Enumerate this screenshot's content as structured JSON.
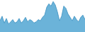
{
  "chart_data": {
    "type": "area",
    "series": [
      {
        "type": "area",
        "color": "#6bb3d9",
        "values": [
          20,
          28,
          16,
          24,
          14,
          18,
          22,
          16,
          18,
          24,
          16,
          20,
          26,
          18,
          22,
          20,
          16,
          18,
          22,
          20,
          26,
          30,
          44,
          50,
          46,
          54,
          48,
          36,
          20,
          28,
          46,
          42,
          32,
          26,
          20,
          28,
          22,
          18,
          26,
          30,
          22
        ]
      },
      {
        "type": "line",
        "color": "#3a8fc0",
        "values": [
          20,
          28,
          16,
          24,
          14,
          18,
          22,
          16,
          18,
          24,
          16,
          20,
          26,
          18,
          22,
          20,
          16,
          18,
          22,
          20,
          26,
          30,
          44,
          50,
          46,
          54,
          48,
          36,
          20,
          28,
          46,
          42,
          32,
          26,
          20,
          28,
          22,
          18,
          26,
          30,
          22
        ]
      }
    ],
    "xlim": [
      0,
      40
    ],
    "ylim": [
      0,
      56.7
    ],
    "tick_labels": false,
    "grid": false
  }
}
